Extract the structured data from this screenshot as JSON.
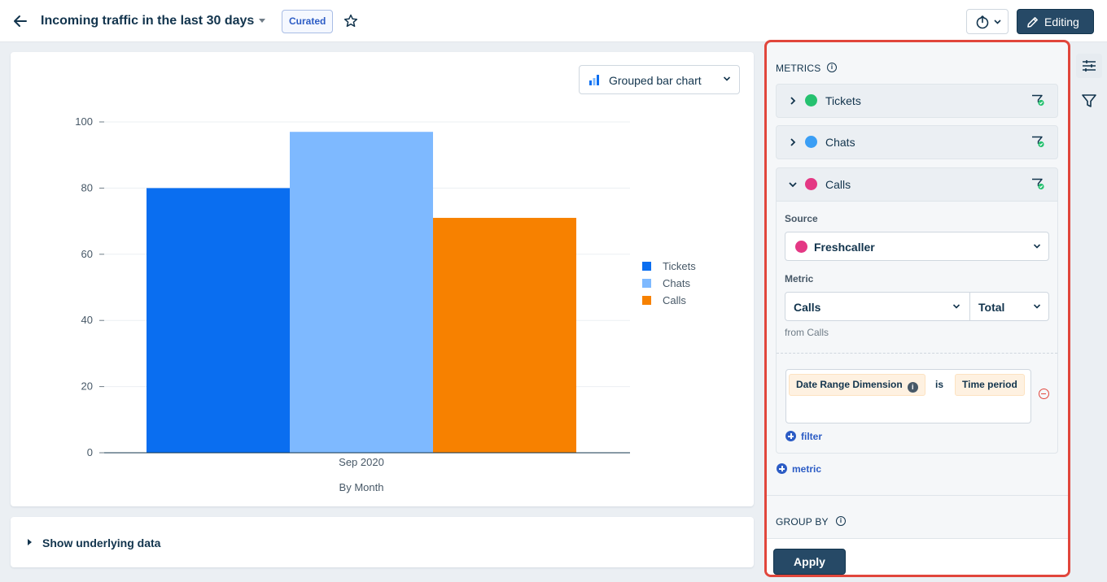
{
  "header": {
    "title": "Incoming traffic in the last 30 days",
    "badge": "Curated",
    "editing_label": "Editing",
    "icons": [
      "back-arrow-icon",
      "caret-down-icon",
      "star-icon",
      "export-icon",
      "pencil-icon"
    ]
  },
  "chart_card": {
    "chart_type_label": "Grouped bar chart"
  },
  "chart_data": {
    "type": "bar",
    "categories": [
      "Sep 2020"
    ],
    "series": [
      {
        "name": "Tickets",
        "values": [
          80
        ],
        "color": "#0a6ef0"
      },
      {
        "name": "Chats",
        "values": [
          97
        ],
        "color": "#7eb9ff"
      },
      {
        "name": "Calls",
        "values": [
          71
        ],
        "color": "#f78100"
      }
    ],
    "xlabel": "By Month",
    "ylabel": "",
    "ylim": [
      0,
      100
    ],
    "yticks": [
      "0",
      "20",
      "40",
      "60",
      "80",
      "100"
    ],
    "grid": true,
    "legend": "right"
  },
  "underlying": {
    "label": "Show underlying data"
  },
  "panel": {
    "metrics_title": "METRICS",
    "metrics": [
      {
        "label": "Tickets",
        "color": "#25c16f",
        "expanded": false
      },
      {
        "label": "Chats",
        "color": "#3a9ef5",
        "expanded": false
      },
      {
        "label": "Calls",
        "color": "#e43884",
        "expanded": true
      }
    ],
    "source_label": "Source",
    "source_value": "Freshcaller",
    "metric_label": "Metric",
    "metric_value": "Calls",
    "aggregate_value": "Total",
    "from_text": "from Calls",
    "filter": {
      "dimension": "Date Range Dimension",
      "operator": "is",
      "value": "Time period"
    },
    "add_filter": "filter",
    "add_metric": "metric",
    "group_by_title": "GROUP BY",
    "apply_label": "Apply"
  }
}
